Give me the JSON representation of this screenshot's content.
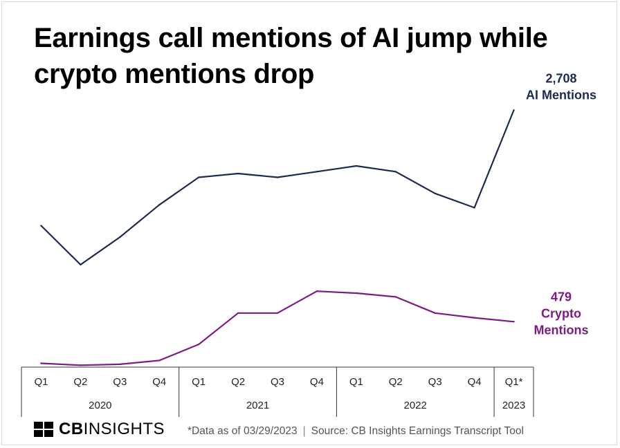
{
  "title": "Earnings call mentions of AI jump while crypto mentions drop",
  "footnote": {
    "data_note": "*Data as of 03/29/2023",
    "source": "Source: CB Insights Earnings Transcript Tool"
  },
  "brand": {
    "bold": "CB",
    "light": "INSIGHTS"
  },
  "chart_data": {
    "type": "line",
    "quarters": [
      "Q1",
      "Q2",
      "Q3",
      "Q4",
      "Q1",
      "Q2",
      "Q3",
      "Q4",
      "Q1",
      "Q2",
      "Q3",
      "Q4",
      "Q1*"
    ],
    "years": [
      {
        "label": "2020",
        "span": 4
      },
      {
        "label": "2021",
        "span": 4
      },
      {
        "label": "2022",
        "span": 4
      },
      {
        "label": "2023",
        "span": 1
      }
    ],
    "ylim": [
      0,
      2900
    ],
    "series": [
      {
        "name": "AI Mentions",
        "color": "#1b2a4e",
        "values": [
          1490,
          1080,
          1370,
          1710,
          2000,
          2040,
          2000,
          2060,
          2120,
          2060,
          1830,
          1680,
          2708
        ],
        "end_label_value": "2,708",
        "end_label_name": "AI Mentions"
      },
      {
        "name": "Crypto Mentions",
        "color": "#7c1a86",
        "values": [
          40,
          20,
          30,
          70,
          240,
          570,
          570,
          800,
          780,
          740,
          570,
          520,
          479
        ],
        "end_label_value": "479",
        "end_label_name_line1": "Crypto",
        "end_label_name_line2": "Mentions"
      }
    ]
  }
}
